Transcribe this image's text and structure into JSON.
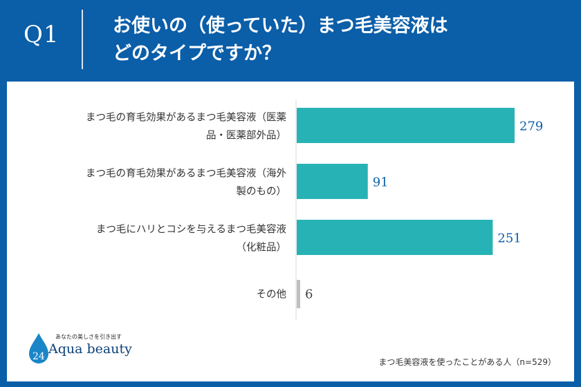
{
  "header": {
    "question_label": "Q1",
    "title": "お使いの（使っていた）まつ毛美容液は\nどのタイプですか？"
  },
  "footer": {
    "note": "まつ毛美容液を使ったことがある人（n=529）",
    "logo": {
      "tagline": "あなたの美しさを引き出す",
      "number": "24",
      "brand": "Aqua beauty"
    }
  },
  "colors": {
    "header_bg": "#0b5ea8",
    "bar": "#27b3b5",
    "bar_other": "#c0c0c0",
    "value_text": "#0b5ea8"
  },
  "chart_data": {
    "type": "bar",
    "orientation": "horizontal",
    "categories": [
      [
        "まつ毛の育毛効果があるまつ毛美容液（医薬",
        "品・医薬部外品）"
      ],
      [
        "まつ毛の育毛効果があるまつ毛美容液（海外",
        "製のもの）"
      ],
      [
        "まつ毛にハリとコシを与えるまつ毛美容液",
        "（化粧品）"
      ],
      [
        "その他"
      ]
    ],
    "values": [
      279,
      91,
      251,
      6
    ],
    "xlim": [
      0,
      300
    ],
    "grid": false,
    "legend": "none"
  }
}
